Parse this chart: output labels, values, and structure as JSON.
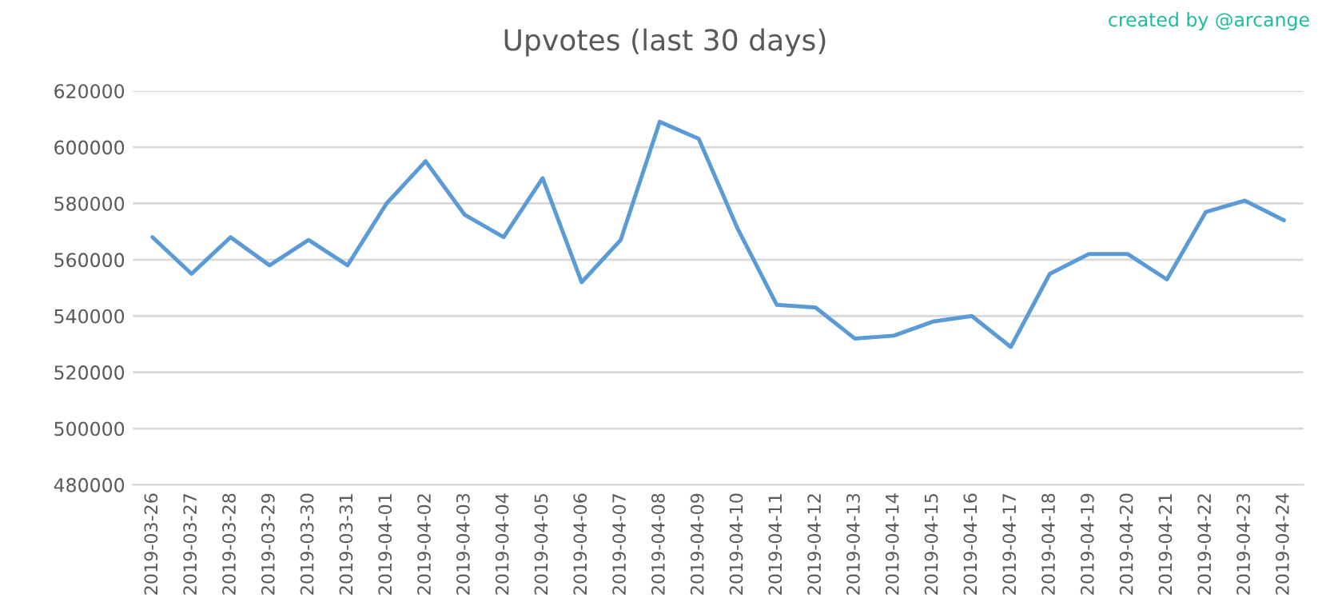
{
  "chart_data": {
    "type": "line",
    "title": "Upvotes (last 30 days)",
    "annotations": [
      "created by @arcange"
    ],
    "categories": [
      "2019-03-26",
      "2019-03-27",
      "2019-03-28",
      "2019-03-29",
      "2019-03-30",
      "2019-03-31",
      "2019-04-01",
      "2019-04-02",
      "2019-04-03",
      "2019-04-04",
      "2019-04-05",
      "2019-04-06",
      "2019-04-07",
      "2019-04-08",
      "2019-04-09",
      "2019-04-10",
      "2019-04-11",
      "2019-04-12",
      "2019-04-13",
      "2019-04-14",
      "2019-04-15",
      "2019-04-16",
      "2019-04-17",
      "2019-04-18",
      "2019-04-19",
      "2019-04-20",
      "2019-04-21",
      "2019-04-22",
      "2019-04-23",
      "2019-04-24"
    ],
    "series": [
      {
        "color": "#5b9bd5",
        "values": [
          568000,
          555000,
          568000,
          558000,
          567000,
          558000,
          580000,
          595000,
          576000,
          568000,
          589000,
          552000,
          567000,
          609000,
          603000,
          571000,
          544000,
          543000,
          532000,
          533000,
          538000,
          540000,
          529000,
          555000,
          562000,
          562000,
          553000,
          577000,
          581000,
          574000
        ]
      }
    ],
    "ylim": [
      480000,
      620000
    ],
    "yticks": [
      480000,
      500000,
      520000,
      540000,
      560000,
      580000,
      600000,
      620000
    ],
    "grid": "y",
    "marker": "none",
    "line_style": "solid",
    "legend": false
  }
}
